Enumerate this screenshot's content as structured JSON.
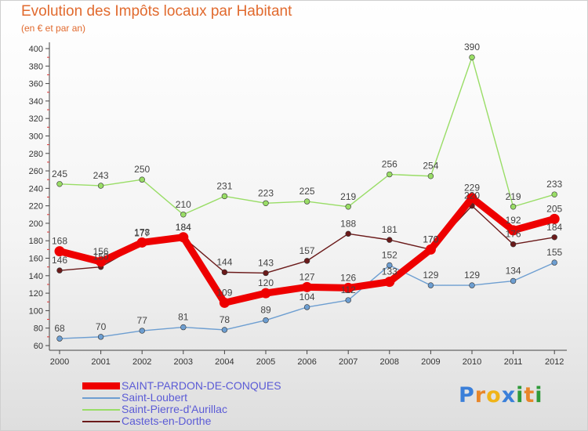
{
  "chart_data": {
    "type": "line",
    "title": "Evolution des Impôts locaux par Habitant",
    "subtitle": "(en € et par an)",
    "xlabel": "",
    "ylabel": "",
    "categories": [
      "2000",
      "2001",
      "2002",
      "2003",
      "2004",
      "2005",
      "2006",
      "2007",
      "2008",
      "2009",
      "2010",
      "2011",
      "2012"
    ],
    "ylim": [
      60,
      400
    ],
    "yticks": [
      60,
      80,
      100,
      120,
      140,
      160,
      180,
      200,
      220,
      240,
      260,
      280,
      300,
      320,
      340,
      360,
      380,
      400
    ],
    "grid": false,
    "legend_position": "bottom-left",
    "series": [
      {
        "name": "SAINT-PARDON-DE-CONQUES",
        "color": "#ee0000",
        "values": [
          168,
          156,
          178,
          184,
          109,
          120,
          127,
          126,
          133,
          170,
          229,
          192,
          205
        ]
      },
      {
        "name": "Saint-Loubert",
        "color": "#6d9ed1",
        "values": [
          68,
          70,
          77,
          81,
          78,
          89,
          104,
          112,
          152,
          129,
          129,
          134,
          155
        ]
      },
      {
        "name": "Saint-Pierre-d'Aurillac",
        "color": "#99dd66",
        "values": [
          245,
          243,
          250,
          210,
          231,
          223,
          225,
          219,
          256,
          254,
          390,
          219,
          233
        ]
      },
      {
        "name": "Castets-en-Dorthe",
        "color": "#6b1a1a",
        "values": [
          146,
          150,
          177,
          184,
          144,
          143,
          157,
          188,
          181,
          170,
          220,
          176,
          184
        ]
      }
    ]
  },
  "brand": {
    "text": "Proxiti",
    "letters": [
      "P",
      "r",
      "o",
      "x",
      "i",
      "t",
      "i"
    ]
  }
}
